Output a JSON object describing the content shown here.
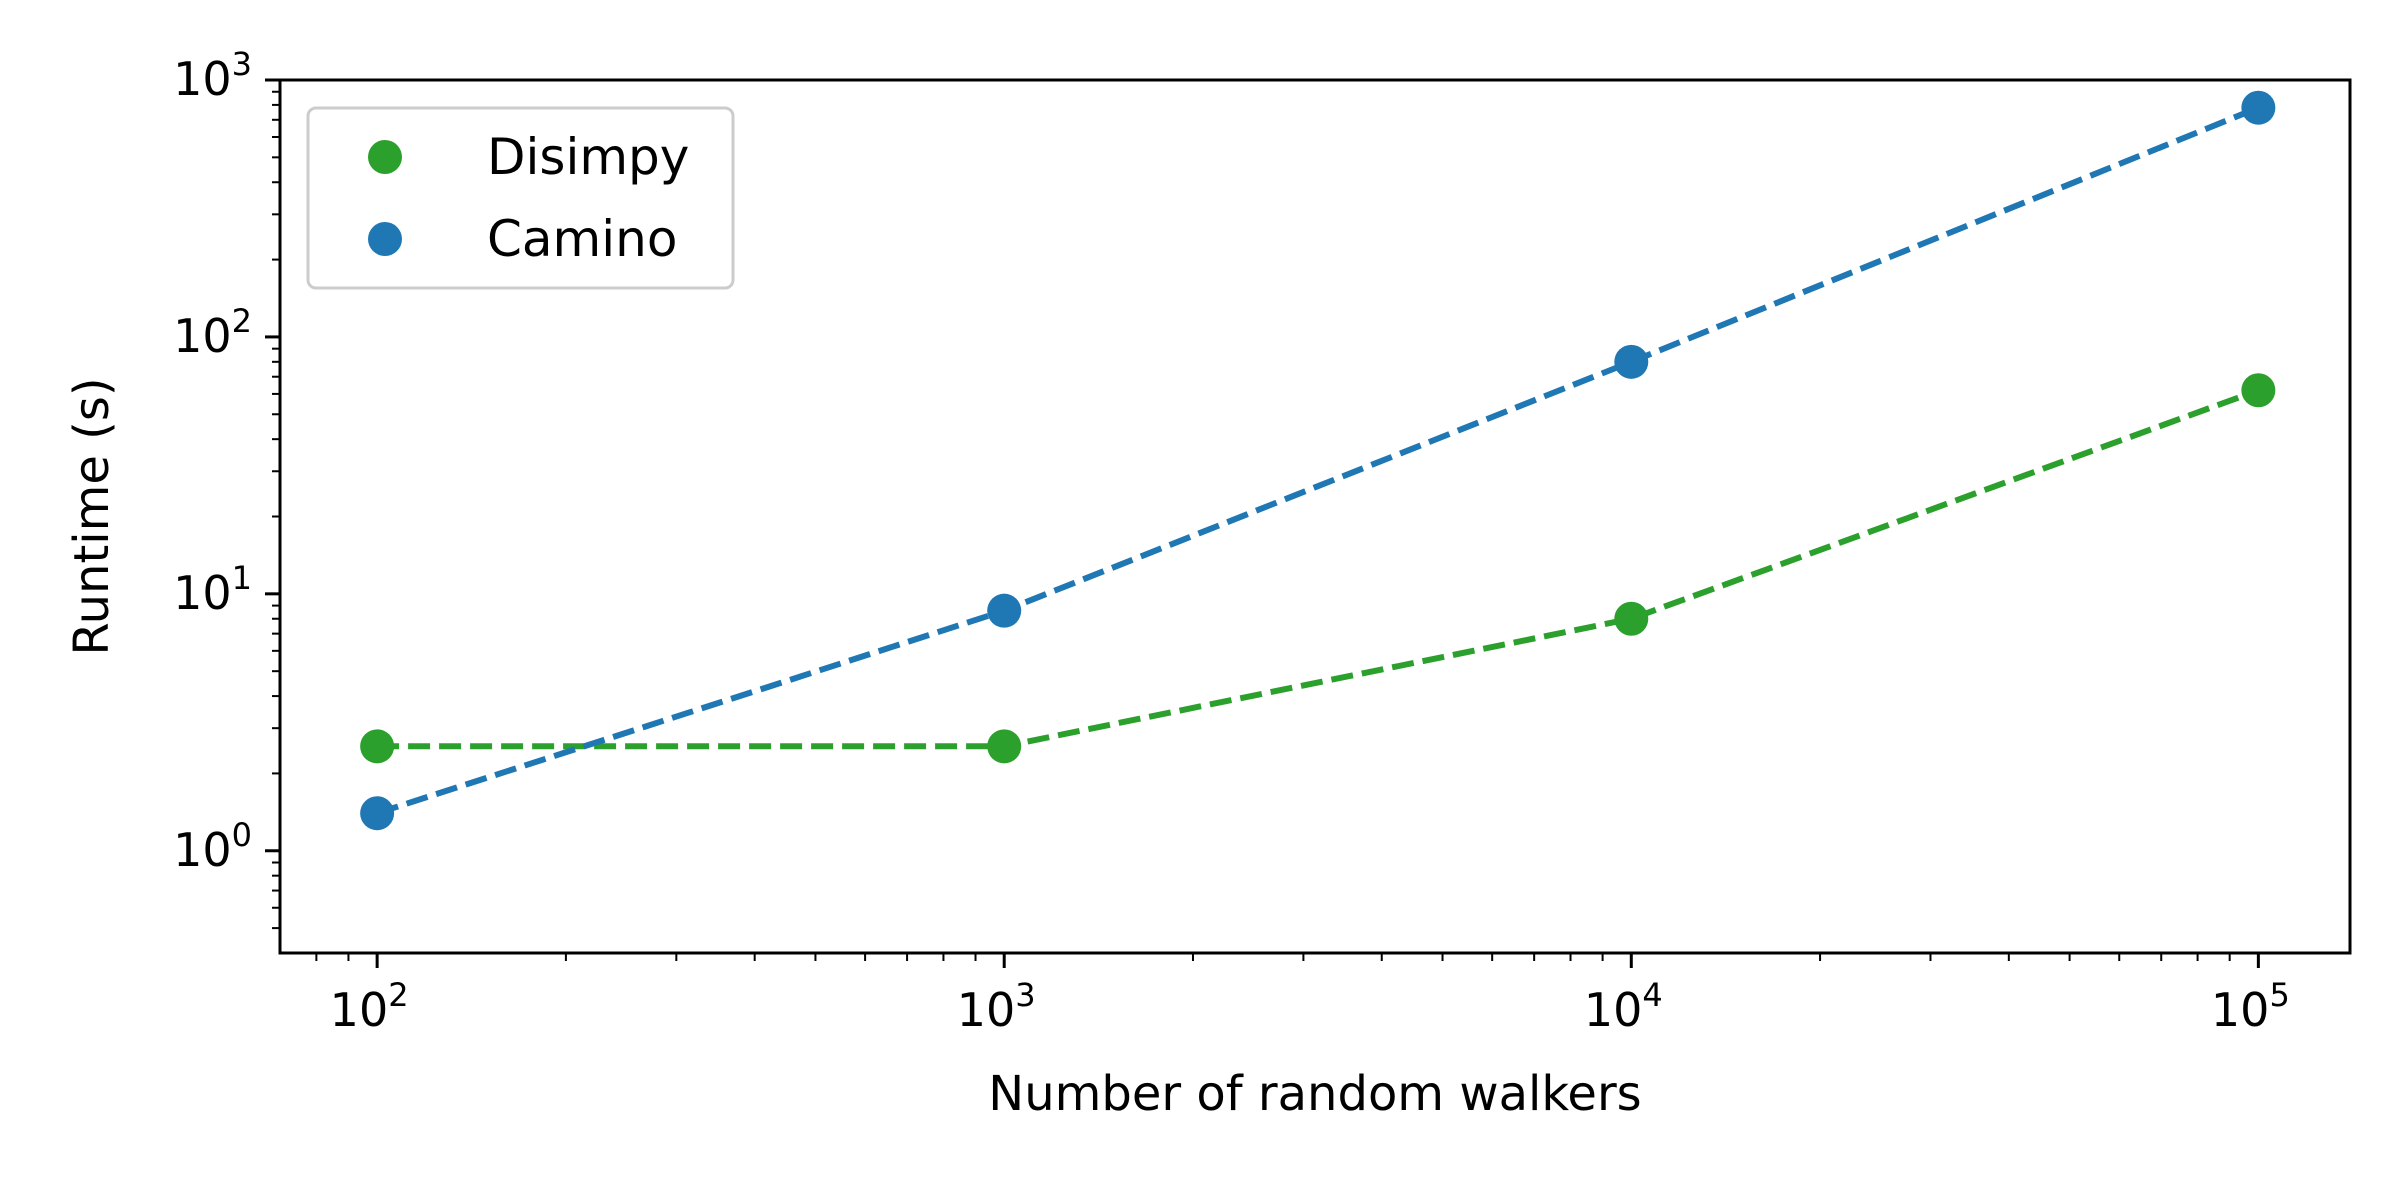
{
  "chart_data": {
    "type": "line",
    "title": "",
    "xlabel": "Number of random walkers",
    "ylabel": "Runtime (s)",
    "xscale": "log",
    "yscale": "log",
    "xlim": [
      70,
      140000
    ],
    "ylim": [
      0.4,
      1000
    ],
    "grid": false,
    "legend_position": "top-left",
    "x_ticks": [
      {
        "value": 100,
        "base": "10",
        "exp": "2"
      },
      {
        "value": 1000,
        "base": "10",
        "exp": "3"
      },
      {
        "value": 10000,
        "base": "10",
        "exp": "4"
      },
      {
        "value": 100000,
        "base": "10",
        "exp": "5"
      }
    ],
    "y_ticks": [
      {
        "value": 1,
        "base": "10",
        "exp": "0"
      },
      {
        "value": 10,
        "base": "10",
        "exp": "1"
      },
      {
        "value": 100,
        "base": "10",
        "exp": "2"
      },
      {
        "value": 1000,
        "base": "10",
        "exp": "3"
      }
    ],
    "series": [
      {
        "name": "Disimpy",
        "color": "#2ca02c",
        "line_style": "dashed",
        "marker": "circle",
        "x": [
          100,
          1000,
          10000,
          100000
        ],
        "y": [
          2.55,
          2.55,
          8.0,
          62.0
        ]
      },
      {
        "name": "Camino",
        "color": "#1f77b4",
        "line_style": "dashed",
        "marker": "circle",
        "x": [
          100,
          1000,
          10000,
          100000
        ],
        "y": [
          1.4,
          8.6,
          80.0,
          780.0
        ]
      }
    ]
  }
}
